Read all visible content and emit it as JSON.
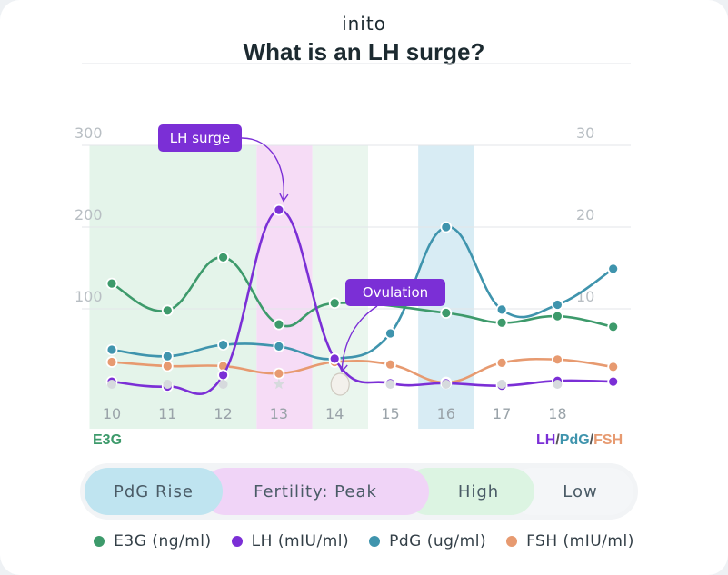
{
  "brand": {
    "name": "inito"
  },
  "header": {
    "title": "What is an LH surge?"
  },
  "colors": {
    "e3g": "#3d9a6b",
    "lh": "#7b2fd6",
    "pdg": "#3f94ad",
    "fsh": "#e79a70",
    "label_bg": "#7b2fd6"
  },
  "axes": {
    "left_label": "E3G",
    "right_label_parts": [
      "LH",
      "/",
      "PdG",
      "/",
      "FSH"
    ]
  },
  "annotations": [
    {
      "text": "LH surge",
      "target_day": 13,
      "series": "LH"
    },
    {
      "text": "Ovulation",
      "target_day": 14
    }
  ],
  "phases": [
    {
      "label": "PdG Rise",
      "color": "#bfe4f0"
    },
    {
      "label": "Fertility: Peak",
      "color": "#f0d4f7"
    },
    {
      "label": "High",
      "color": "#dcf4e2"
    },
    {
      "label": "Low",
      "color": "#f4f6f8"
    }
  ],
  "legend": [
    {
      "label": "E3G (ng/ml)",
      "color": "#3d9a6b"
    },
    {
      "label": "LH (mIU/ml)",
      "color": "#7b2fd6"
    },
    {
      "label": "PdG (ug/ml)",
      "color": "#3f94ad"
    },
    {
      "label": "FSH (mIU/ml)",
      "color": "#e79a70"
    }
  ],
  "chart_data": {
    "type": "line",
    "x": [
      10,
      11,
      12,
      13,
      14,
      15,
      16,
      17,
      18,
      19
    ],
    "x_tick_labels": [
      "10",
      "11",
      "12",
      "13",
      "14",
      "15",
      "16",
      "17",
      "18"
    ],
    "left_axis": {
      "label": "E3G",
      "ticks": [
        "300",
        "200",
        "100"
      ],
      "tick_values": [
        300,
        200,
        100
      ],
      "range": [
        0,
        300
      ]
    },
    "right_axis": {
      "label": "LH/PdG/FSH",
      "ticks": [
        "30",
        "20",
        "10"
      ],
      "tick_values": [
        30,
        20,
        10
      ],
      "range": [
        0,
        30
      ]
    },
    "series": [
      {
        "name": "E3G",
        "axis": "left",
        "values": [
          131,
          98,
          163,
          81,
          107,
          null,
          95,
          83,
          91,
          78
        ]
      },
      {
        "name": "LH",
        "axis": "right",
        "values": [
          1.1,
          0.5,
          1.9,
          22.1,
          3.9,
          0.9,
          0.9,
          0.6,
          1.2,
          1.1
        ]
      },
      {
        "name": "PdG",
        "axis": "right",
        "values": [
          5.0,
          4.2,
          5.6,
          5.4,
          3.9,
          7.0,
          20.0,
          9.9,
          10.5,
          14.9
        ]
      },
      {
        "name": "FSH",
        "axis": "right",
        "values": [
          3.5,
          3.0,
          3.0,
          2.1,
          3.5,
          3.2,
          1.0,
          3.4,
          3.8,
          2.9
        ]
      }
    ],
    "highlight_bands": [
      {
        "from": 9.6,
        "to": 12.6,
        "color": "#e4f4ea",
        "phase": "High"
      },
      {
        "from": 12.6,
        "to": 13.6,
        "color": "#f6dcf6",
        "phase": "Fertility: Peak"
      },
      {
        "from": 13.6,
        "to": 14.6,
        "color": "#eaf6ee",
        "phase": "High"
      },
      {
        "from": 15.5,
        "to": 16.5,
        "color": "#d8ecf4",
        "phase": "PdG Rise"
      }
    ],
    "markers_row": [
      "circle",
      "circle",
      "circle",
      "star",
      "egg",
      "circle",
      "circle",
      "circle",
      "circle"
    ],
    "grid": true
  }
}
